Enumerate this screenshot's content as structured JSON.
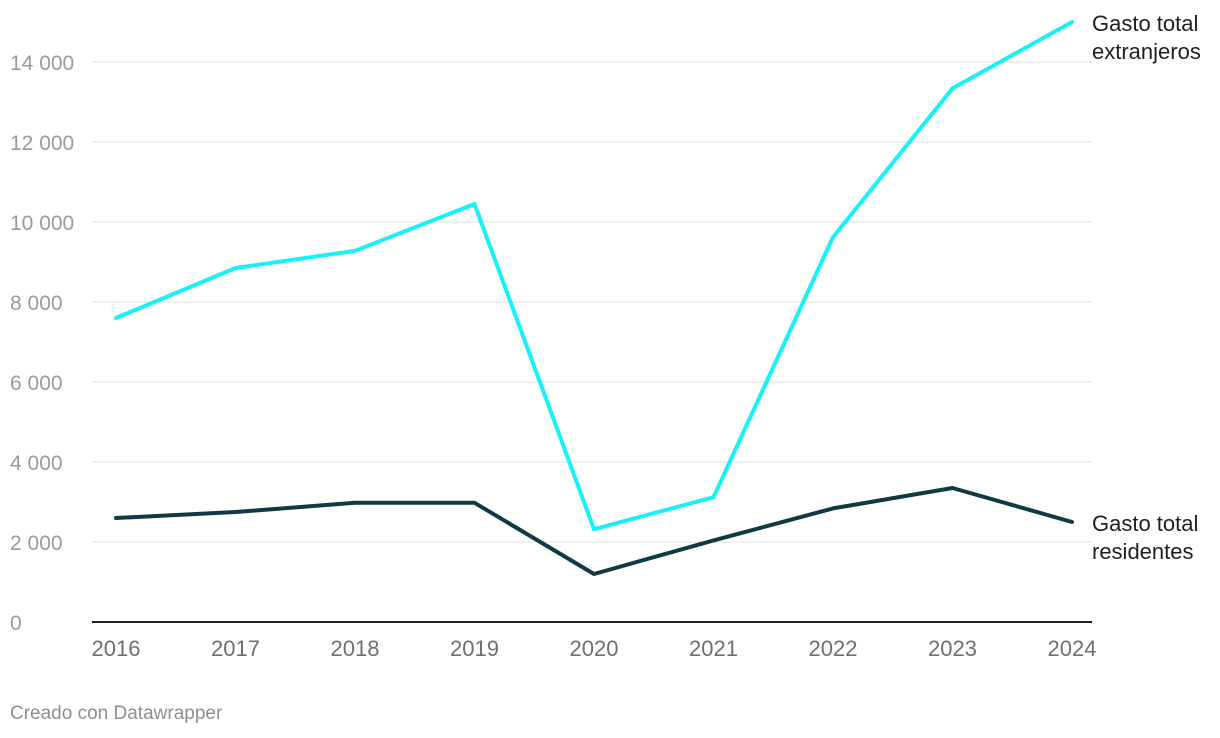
{
  "chart_data": {
    "type": "line",
    "x": [
      "2016",
      "2017",
      "2018",
      "2019",
      "2020",
      "2021",
      "2022",
      "2023",
      "2024"
    ],
    "ylim": [
      0,
      15000
    ],
    "yticks": [
      0,
      2000,
      4000,
      6000,
      8000,
      10000,
      12000,
      14000
    ],
    "ytick_labels": [
      "0",
      "2 000",
      "4 000",
      "6 000",
      "8 000",
      "10 000",
      "12 000",
      "14 000"
    ],
    "grid": true,
    "legend": "inline-right",
    "series": [
      {
        "name": "Gasto total extranjeros",
        "label_lines": [
          "Gasto total",
          "extranjeros"
        ],
        "color": "#17f1f7",
        "values": [
          7600,
          8850,
          9280,
          10450,
          2320,
          3120,
          9620,
          13340,
          15000
        ]
      },
      {
        "name": "Gasto total residentes",
        "label_lines": [
          "Gasto total",
          "residentes"
        ],
        "color": "#0d3a44",
        "values": [
          2600,
          2750,
          2980,
          2980,
          1200,
          2040,
          2840,
          3350,
          2500
        ]
      }
    ]
  },
  "footer": {
    "credit": "Creado con Datawrapper"
  }
}
